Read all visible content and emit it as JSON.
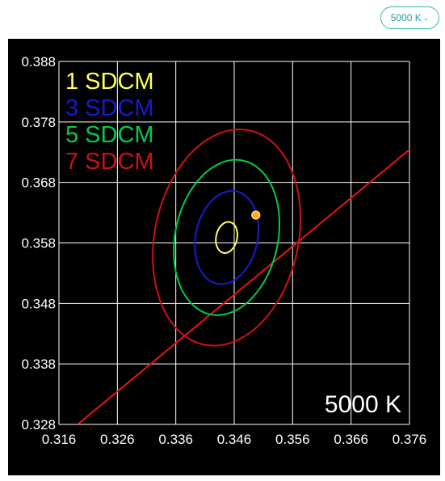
{
  "controls": {
    "cct_select": {
      "label": "5000 K",
      "icon": "chevron-down-icon",
      "accent": "#35b9b0"
    }
  },
  "chart_data": {
    "type": "line",
    "title": "",
    "xlabel": "",
    "ylabel": "",
    "xlim": [
      0.316,
      0.376
    ],
    "ylim": [
      0.328,
      0.388
    ],
    "x_ticks": [
      "0.316",
      "0.326",
      "0.336",
      "0.346",
      "0.356",
      "0.366",
      "0.376"
    ],
    "y_ticks": [
      "0.388",
      "0.378",
      "0.368",
      "0.358",
      "0.348",
      "0.338",
      "0.328"
    ],
    "grid": true,
    "background": "#000000",
    "annotation": "5000 K",
    "legend_position": "top-left",
    "ellipses": [
      {
        "name": "1 SDCM",
        "color": "#ffff55",
        "center": [
          0.3447,
          0.3589
        ],
        "rx": 0.0018,
        "ry": 0.0026,
        "angle_deg": 12
      },
      {
        "name": "3 SDCM",
        "color": "#1a1acc",
        "center": [
          0.3447,
          0.3589
        ],
        "rx": 0.0053,
        "ry": 0.0078,
        "angle_deg": 12
      },
      {
        "name": "5 SDCM",
        "color": "#00cc44",
        "center": [
          0.3447,
          0.3589
        ],
        "rx": 0.0088,
        "ry": 0.013,
        "angle_deg": 12
      },
      {
        "name": "7 SDCM",
        "color": "#cc1111",
        "center": [
          0.3447,
          0.3589
        ],
        "rx": 0.0123,
        "ry": 0.0181,
        "angle_deg": 12
      }
    ],
    "series": [
      {
        "color": "#ee1111",
        "x": [
          0.3192,
          0.3762
        ],
        "y": [
          0.328,
          0.3736
        ]
      }
    ],
    "points": [
      {
        "x": 0.3497,
        "y": 0.3626,
        "color": "#ffaa22"
      }
    ]
  }
}
